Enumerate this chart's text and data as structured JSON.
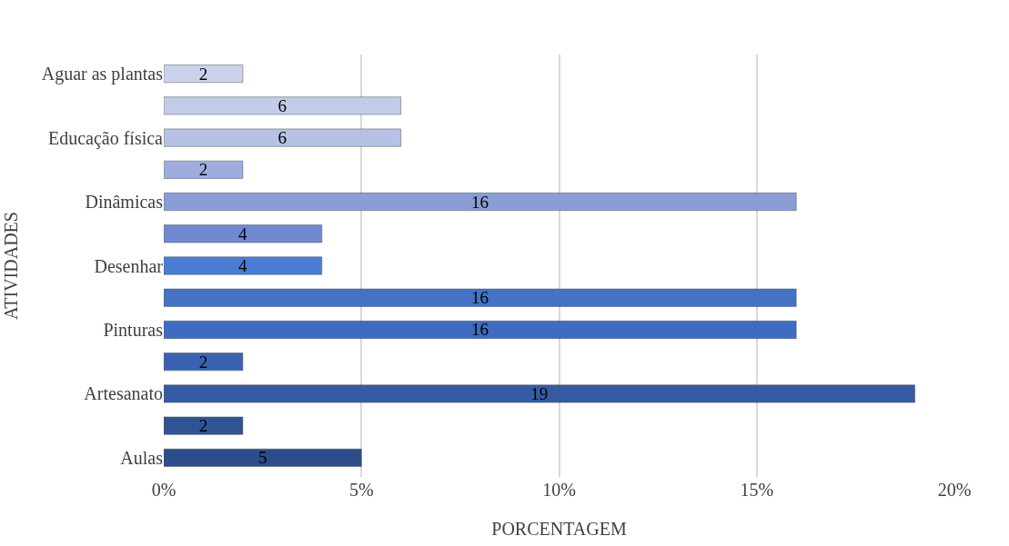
{
  "chart_data": {
    "type": "bar",
    "orientation": "horizontal",
    "xlabel": "PORCENTAGEM",
    "ylabel": "ATIVIDADES",
    "categories": [
      "Aguar as plantas",
      null,
      "Educação física",
      null,
      "Dinâmicas",
      null,
      "Desenhar",
      null,
      "Pinturas",
      null,
      "Artesanato",
      null,
      "Aulas"
    ],
    "values": [
      2,
      6,
      6,
      2,
      16,
      4,
      4,
      16,
      16,
      2,
      19,
      2,
      5
    ],
    "colors": [
      "#cbd2ec",
      "#c2cbe9",
      "#b5c1e5",
      "#9eaddd",
      "#8b9dd7",
      "#7189d0",
      "#4a7dd3",
      "#4472c4",
      "#3f6bc0",
      "#3a62b3",
      "#355ba3",
      "#305393",
      "#2c4d89"
    ],
    "data_labels": true,
    "xlim": [
      0,
      20
    ],
    "xticks": [
      {
        "value": 0,
        "label": "0%"
      },
      {
        "value": 5,
        "label": "5%"
      },
      {
        "value": 10,
        "label": "10%"
      },
      {
        "value": 15,
        "label": "15%"
      },
      {
        "value": 20,
        "label": "20%"
      }
    ],
    "grid": "x"
  }
}
